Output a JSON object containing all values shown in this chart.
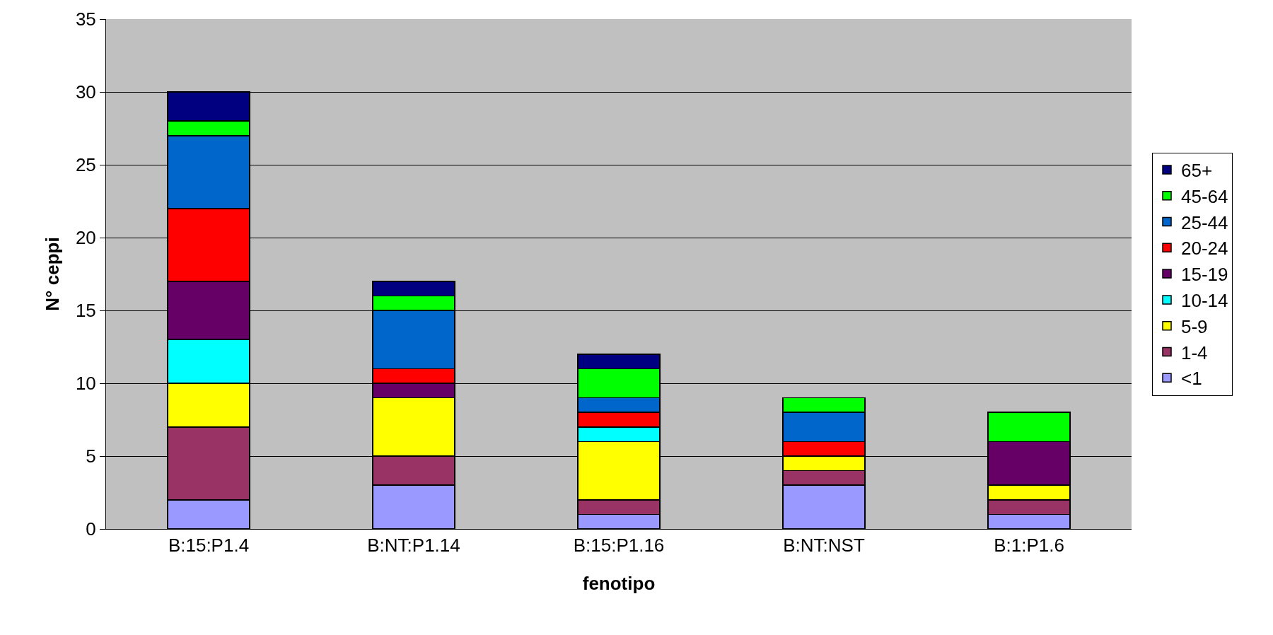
{
  "chart_data": {
    "type": "bar",
    "stacked": true,
    "xlabel": "fenotipo",
    "ylabel": "N° ceppi",
    "categories": [
      "B:15:P1.4",
      "B:NT:P1.14",
      "B:15:P1.16",
      "B:NT:NST",
      "B:1:P1.6"
    ],
    "series": [
      {
        "name": "<1",
        "color": "#9999ff",
        "values": [
          2,
          3,
          1,
          3,
          1
        ]
      },
      {
        "name": "1-4",
        "color": "#993366",
        "values": [
          5,
          2,
          1,
          1,
          1
        ]
      },
      {
        "name": "5-9",
        "color": "#ffff00",
        "values": [
          3,
          4,
          4,
          1,
          1
        ]
      },
      {
        "name": "10-14",
        "color": "#00ffff",
        "values": [
          3,
          0,
          1,
          0,
          0
        ]
      },
      {
        "name": "15-19",
        "color": "#660066",
        "values": [
          4,
          1,
          0,
          0,
          3
        ]
      },
      {
        "name": "20-24",
        "color": "#ff0000",
        "values": [
          5,
          1,
          1,
          1,
          0
        ]
      },
      {
        "name": "25-44",
        "color": "#0066cc",
        "values": [
          5,
          4,
          1,
          2,
          0
        ]
      },
      {
        "name": "45-64",
        "color": "#00ff00",
        "values": [
          1,
          1,
          2,
          1,
          2
        ]
      },
      {
        "name": "65+",
        "color": "#000080",
        "values": [
          2,
          1,
          1,
          0,
          0
        ]
      }
    ],
    "ylim": [
      0,
      35
    ],
    "yticks": [
      0,
      5,
      10,
      15,
      20,
      25,
      30,
      35
    ],
    "grid": "y",
    "legend": "right"
  }
}
